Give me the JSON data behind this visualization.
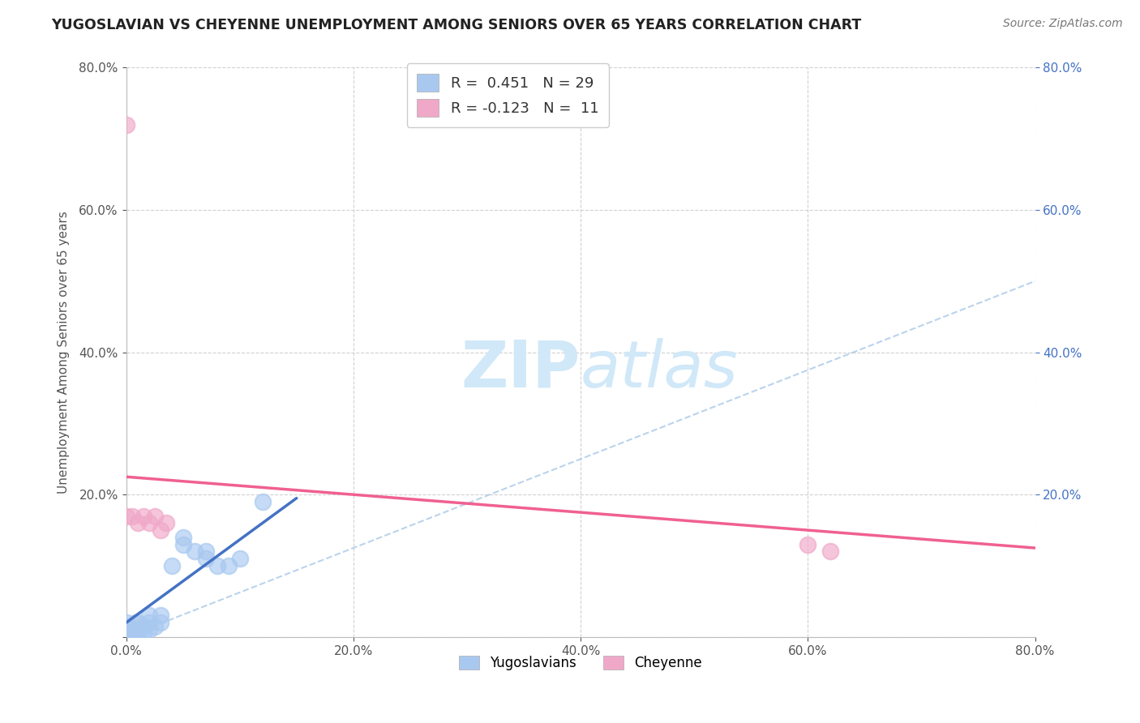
{
  "title": "YUGOSLAVIAN VS CHEYENNE UNEMPLOYMENT AMONG SENIORS OVER 65 YEARS CORRELATION CHART",
  "source": "Source: ZipAtlas.com",
  "ylabel": "Unemployment Among Seniors over 65 years",
  "xlim": [
    0.0,
    0.8
  ],
  "ylim": [
    0.0,
    0.8
  ],
  "xtick_vals": [
    0.0,
    0.2,
    0.4,
    0.6,
    0.8
  ],
  "ytick_vals": [
    0.0,
    0.2,
    0.4,
    0.6,
    0.8
  ],
  "right_ytick_labels": [
    "80.0%",
    "60.0%",
    "40.0%",
    "20.0%"
  ],
  "right_ytick_vals": [
    0.8,
    0.6,
    0.4,
    0.2
  ],
  "yugoslavians_R": 0.451,
  "yugoslavians_N": 29,
  "cheyenne_R": -0.123,
  "cheyenne_N": 11,
  "yugoslavians_color": "#a8c8f0",
  "cheyenne_color": "#f0a8c8",
  "yugoslavians_line_color": "#4472c4",
  "cheyenne_line_color": "#f06090",
  "dashed_line_color": "#aac8e8",
  "watermark_color": "#d0e8f8",
  "background_color": "#ffffff",
  "yugoslavians_x": [
    0.0,
    0.0,
    0.0,
    0.0,
    0.0,
    0.005,
    0.005,
    0.008,
    0.01,
    0.01,
    0.01,
    0.015,
    0.015,
    0.02,
    0.02,
    0.02,
    0.025,
    0.03,
    0.03,
    0.04,
    0.05,
    0.05,
    0.06,
    0.07,
    0.07,
    0.08,
    0.09,
    0.1,
    0.12
  ],
  "yugoslavians_y": [
    0.0,
    0.005,
    0.01,
    0.015,
    0.02,
    0.0,
    0.01,
    0.02,
    0.0,
    0.01,
    0.02,
    0.005,
    0.015,
    0.01,
    0.02,
    0.03,
    0.015,
    0.02,
    0.03,
    0.1,
    0.13,
    0.14,
    0.12,
    0.11,
    0.12,
    0.1,
    0.1,
    0.11,
    0.19
  ],
  "cheyenne_x": [
    0.0,
    0.0,
    0.005,
    0.01,
    0.015,
    0.02,
    0.025,
    0.03,
    0.035,
    0.6,
    0.62
  ],
  "cheyenne_y": [
    0.72,
    0.17,
    0.17,
    0.16,
    0.17,
    0.16,
    0.17,
    0.15,
    0.16,
    0.13,
    0.12
  ],
  "yugo_line_x": [
    0.0,
    0.15
  ],
  "yugo_line_y": [
    0.02,
    0.195
  ],
  "chey_line_x": [
    0.0,
    0.8
  ],
  "chey_line_y": [
    0.225,
    0.125
  ],
  "dash_line_x": [
    0.0,
    0.8
  ],
  "dash_line_y": [
    0.0,
    0.5
  ]
}
